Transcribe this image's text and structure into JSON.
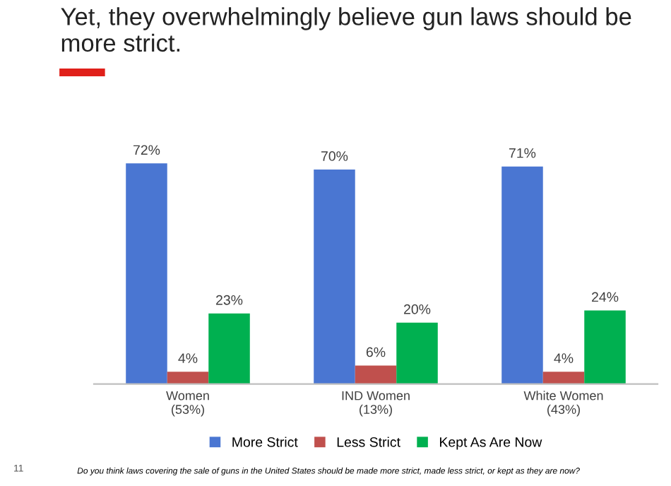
{
  "chart_data": {
    "type": "bar",
    "title": "Yet, they overwhelmingly believe gun laws should be more strict.",
    "categories": [
      "Women\n(53%)",
      "IND Women\n(13%)",
      "White Women\n(43%)"
    ],
    "series": [
      {
        "name": "More Strict",
        "color": "#4a76d2",
        "values": [
          72,
          70,
          71
        ],
        "value_labels": [
          "72%",
          "70%",
          "71%"
        ]
      },
      {
        "name": "Less Strict",
        "color": "#c0504d",
        "values": [
          4,
          6,
          4
        ],
        "value_labels": [
          "4%",
          "6%",
          "4%"
        ]
      },
      {
        "name": "Kept As Are Now",
        "color": "#00b050",
        "values": [
          23,
          20,
          24
        ],
        "value_labels": [
          "23%",
          "20%",
          "24%"
        ]
      }
    ],
    "legend": "bottom",
    "grid": false,
    "annotations": [
      "Do you think laws covering the sale of guns in the United States should be made more strict, made less strict, or kept as they are now?",
      "11"
    ]
  }
}
